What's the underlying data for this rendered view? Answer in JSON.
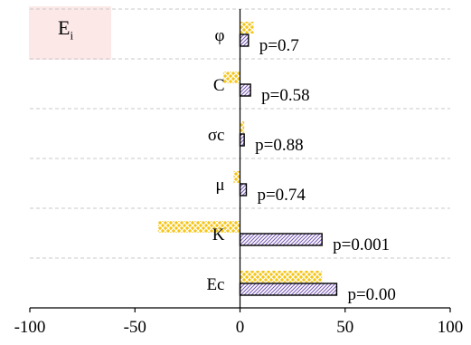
{
  "chart_data": {
    "type": "bar",
    "orientation": "horizontal",
    "legend_label": {
      "main": "E",
      "sub": "i"
    },
    "categories": [
      "φ",
      "C",
      "σc",
      "μ",
      "K",
      "Ec"
    ],
    "series": [
      {
        "values": [
          6.5,
          -8,
          2,
          -3,
          -39,
          39
        ],
        "color": "#f5c518",
        "pattern": "crosshatch"
      },
      {
        "values": [
          4,
          5,
          2,
          3,
          39,
          46
        ],
        "color": "#7b5cb8",
        "pattern": "diagonal"
      }
    ],
    "p_values": [
      "p=0.7",
      "p=0.58",
      "p=0.88",
      "p=0.74",
      "p=0.001",
      "p=0.00"
    ],
    "x_ticks": [
      -100,
      -50,
      0,
      50,
      100
    ],
    "xlim": [
      -100,
      100
    ],
    "grid": "horizontal-dashed",
    "colors": {
      "legend_bg": "#fde8e8",
      "grid": "#c8c8c8",
      "axis": "#000000"
    }
  }
}
